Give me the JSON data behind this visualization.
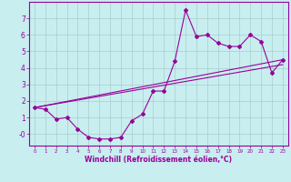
{
  "xlabel": "Windchill (Refroidissement éolien,°C)",
  "bg_color": "#c8eef0",
  "grid_color": "#aacccc",
  "line_color": "#990099",
  "xlim": [
    -0.5,
    23.5
  ],
  "ylim": [
    -0.7,
    8.0
  ],
  "xticks": [
    0,
    1,
    2,
    3,
    4,
    5,
    6,
    7,
    8,
    9,
    10,
    11,
    12,
    13,
    14,
    15,
    16,
    17,
    18,
    19,
    20,
    21,
    22,
    23
  ],
  "yticks": [
    0,
    1,
    2,
    3,
    4,
    5,
    6,
    7
  ],
  "ytick_labels": [
    "-0",
    "1",
    "2",
    "3",
    "4",
    "5",
    "6",
    "7"
  ],
  "line1_x": [
    0,
    1,
    2,
    3,
    4,
    5,
    6,
    7,
    8,
    9,
    10,
    11,
    12,
    13,
    14,
    15,
    16,
    17,
    18,
    19,
    20,
    21,
    22,
    23
  ],
  "line1_y": [
    1.6,
    1.5,
    0.9,
    1.0,
    0.3,
    -0.2,
    -0.3,
    -0.3,
    -0.2,
    0.8,
    1.2,
    2.6,
    2.6,
    4.4,
    7.5,
    5.9,
    6.0,
    5.5,
    5.3,
    5.3,
    6.0,
    5.6,
    3.7,
    4.5
  ],
  "line2_x": [
    0,
    23
  ],
  "line2_y": [
    1.6,
    4.5
  ],
  "line3_x": [
    0,
    23
  ],
  "line3_y": [
    1.6,
    4.2
  ]
}
